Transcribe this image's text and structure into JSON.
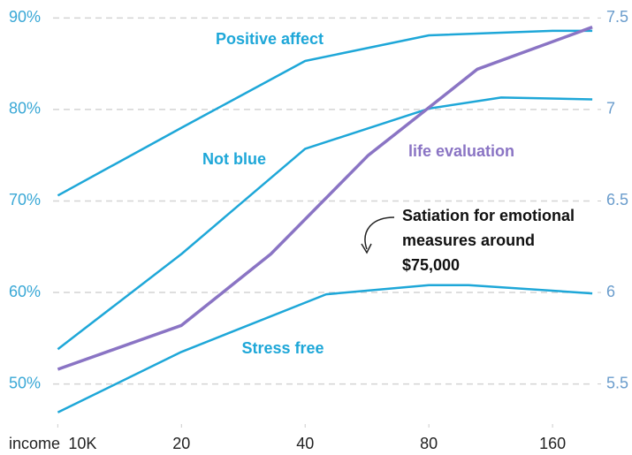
{
  "chart_data": {
    "type": "line",
    "xlabel": "income",
    "xscale": "log",
    "xlim": [
      9.5,
      210
    ],
    "xticks": [
      {
        "value": 10,
        "label": "10K"
      },
      20,
      40,
      80,
      160
    ],
    "ylim": [
      46,
      91
    ],
    "yticks": [
      {
        "value": 50,
        "label": "50%"
      },
      {
        "value": 60,
        "label": "60%"
      },
      {
        "value": 70,
        "label": "70%"
      },
      {
        "value": 80,
        "label": "80%"
      },
      {
        "value": 90,
        "label": "90%"
      }
    ],
    "y2lim": [
      5.3,
      7.55
    ],
    "y2ticks": [
      5.5,
      6,
      6.5,
      7,
      7.5
    ],
    "grid": true,
    "series": [
      {
        "name": "Positive affect",
        "color": "#1ea7d8",
        "x": [
          10,
          20,
          40,
          80,
          160,
          200
        ],
        "values": [
          70.6,
          78.0,
          85.3,
          88.1,
          88.6,
          88.6
        ]
      },
      {
        "name": "Not blue",
        "color": "#1ea7d8",
        "x": [
          10,
          20,
          40,
          80,
          120,
          200
        ],
        "values": [
          53.8,
          64.2,
          75.7,
          80.1,
          81.3,
          81.1
        ]
      },
      {
        "name": "life evaluation",
        "color": "#8a74c4",
        "axis": "y2",
        "x": [
          10,
          20,
          33,
          57,
          80,
          105,
          200
        ],
        "values": [
          5.58,
          5.82,
          6.21,
          6.75,
          7.01,
          7.22,
          7.45
        ]
      },
      {
        "name": "Stress free",
        "color": "#1ea7d8",
        "x": [
          10,
          20,
          45,
          80,
          100,
          200
        ],
        "values": [
          46.9,
          53.5,
          59.8,
          60.8,
          60.8,
          59.9
        ]
      }
    ],
    "annotation": [
      "Satiation for emotional",
      "measures around",
      "$75,000"
    ]
  }
}
